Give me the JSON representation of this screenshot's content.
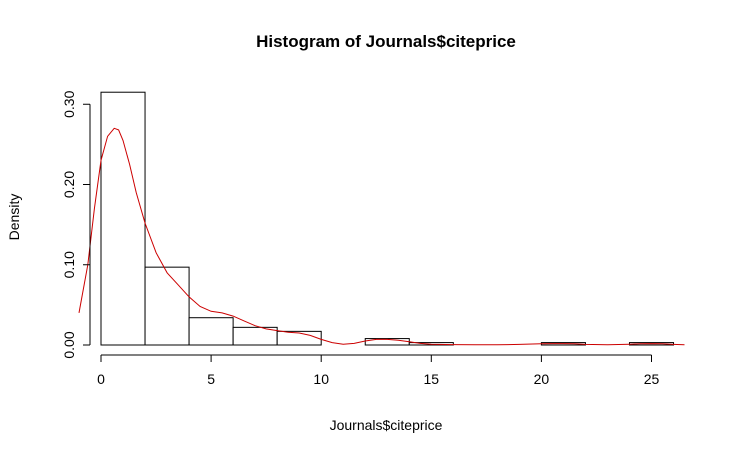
{
  "chart_data": {
    "type": "bar",
    "title": "Histogram of Journals$citeprice",
    "xlabel": "Journals$citeprice",
    "ylabel": "Density",
    "bins": [
      {
        "start": 0,
        "end": 2,
        "density": 0.315
      },
      {
        "start": 2,
        "end": 4,
        "density": 0.097
      },
      {
        "start": 4,
        "end": 6,
        "density": 0.034
      },
      {
        "start": 6,
        "end": 8,
        "density": 0.022
      },
      {
        "start": 8,
        "end": 10,
        "density": 0.017
      },
      {
        "start": 10,
        "end": 12,
        "density": 0.0
      },
      {
        "start": 12,
        "end": 14,
        "density": 0.008
      },
      {
        "start": 14,
        "end": 16,
        "density": 0.003
      },
      {
        "start": 16,
        "end": 18,
        "density": 0.0
      },
      {
        "start": 18,
        "end": 20,
        "density": 0.0
      },
      {
        "start": 20,
        "end": 22,
        "density": 0.003
      },
      {
        "start": 22,
        "end": 24,
        "density": 0.0
      },
      {
        "start": 24,
        "end": 26,
        "density": 0.003
      }
    ],
    "density_curve": {
      "color": "#cc0000",
      "x": [
        -1.0,
        -0.6,
        -0.3,
        0.0,
        0.3,
        0.6,
        0.8,
        1.0,
        1.3,
        1.6,
        2.0,
        2.5,
        3.0,
        3.5,
        4.0,
        4.5,
        5.0,
        5.5,
        6.0,
        6.5,
        7.0,
        7.5,
        8.0,
        8.5,
        9.0,
        9.5,
        10.0,
        10.5,
        11.0,
        11.5,
        12.0,
        12.5,
        13.0,
        13.5,
        14.0,
        14.5,
        15.0,
        16.0,
        17.0,
        18.0,
        19.0,
        20.0,
        20.5,
        21.0,
        21.5,
        22.0,
        23.0,
        24.0,
        24.5,
        25.0,
        25.5,
        26.0,
        26.5
      ],
      "y": [
        0.04,
        0.1,
        0.17,
        0.23,
        0.26,
        0.27,
        0.268,
        0.255,
        0.225,
        0.19,
        0.152,
        0.115,
        0.09,
        0.075,
        0.06,
        0.048,
        0.042,
        0.04,
        0.036,
        0.03,
        0.024,
        0.02,
        0.018,
        0.016,
        0.015,
        0.012,
        0.007,
        0.003,
        0.001,
        0.002,
        0.005,
        0.007,
        0.007,
        0.006,
        0.004,
        0.002,
        0.001,
        0.0005,
        0.0002,
        0.0003,
        0.0008,
        0.0015,
        0.0018,
        0.0018,
        0.0015,
        0.0008,
        0.0003,
        0.001,
        0.0016,
        0.0018,
        0.0015,
        0.0008,
        0.0003
      ]
    },
    "xlim": [
      -1,
      26.5
    ],
    "ylim": [
      0,
      0.315
    ],
    "xticks": [
      0,
      5,
      10,
      15,
      20,
      25
    ],
    "yticks": [
      0.0,
      0.1,
      0.2,
      0.3
    ],
    "xtick_labels": [
      "0",
      "5",
      "10",
      "15",
      "20",
      "25"
    ],
    "ytick_labels": [
      "0.00",
      "0.10",
      "0.20",
      "0.30"
    ]
  }
}
